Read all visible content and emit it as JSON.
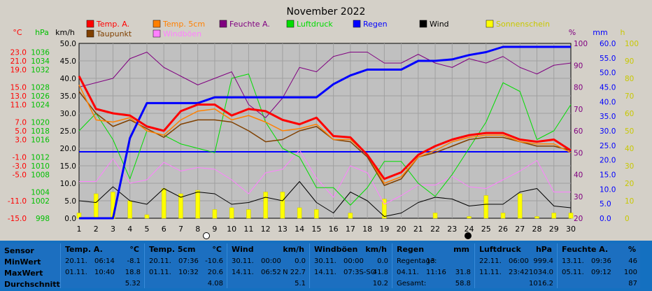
{
  "chart_data": {
    "type": "line",
    "title": "November 2022",
    "x": [
      1,
      2,
      3,
      4,
      5,
      6,
      7,
      8,
      9,
      10,
      11,
      12,
      13,
      14,
      15,
      16,
      17,
      18,
      19,
      20,
      21,
      22,
      23,
      24,
      25,
      26,
      27,
      28,
      29,
      30
    ],
    "axes": {
      "temp": {
        "unit": "°C",
        "ticks": [
          "23.0",
          "21.0",
          "19.0",
          "15.0",
          "13.0",
          "11.0",
          "7.0",
          "5.0",
          "3.0",
          "-1.0",
          "-3.0",
          "-5.0",
          "-11.0",
          "-15.0"
        ],
        "range": [
          -15,
          25
        ]
      },
      "pressure": {
        "unit": "hPa",
        "ticks": [
          "1036",
          "1034",
          "1032",
          "1028",
          "1026",
          "1024",
          "1020",
          "1018",
          "1016",
          "1012",
          "1010",
          "1008",
          "1004",
          "1002",
          "998"
        ],
        "range": [
          998,
          1038
        ]
      },
      "wind": {
        "unit": "km/h",
        "ticks": [
          "50.0",
          "45.0",
          "40.0",
          "35.0",
          "30.0",
          "25.0",
          "20.0",
          "15.0",
          "10.0",
          "5.0",
          "0.0"
        ],
        "range": [
          0,
          50
        ]
      },
      "humidity": {
        "unit": "%",
        "ticks": [
          "100",
          "90",
          "80",
          "70",
          "60",
          "50",
          "40",
          "30",
          "20"
        ],
        "range": [
          20,
          100
        ]
      },
      "rain": {
        "unit": "mm",
        "ticks": [
          "60.0",
          "55.0",
          "50.0",
          "45.0",
          "40.0",
          "35.0",
          "30.0",
          "25.0",
          "20.0",
          "15.0",
          "10.0",
          "5.0",
          "0.0"
        ],
        "range": [
          0,
          60
        ]
      },
      "sun": {
        "unit": "h",
        "ticks": [
          "100",
          "90",
          "80",
          "70",
          "60",
          "50",
          "40",
          "30",
          "20",
          "10",
          "0"
        ],
        "range": [
          0,
          100
        ]
      }
    },
    "legend": [
      {
        "name": "Temp. A.",
        "color": "#ff0000"
      },
      {
        "name": "Temp. 5cm",
        "color": "#ff8000"
      },
      {
        "name": "Feuchte A.",
        "color": "#800080"
      },
      {
        "name": "Luftdruck",
        "color": "#00dd00"
      },
      {
        "name": "Regen",
        "color": "#0000ff"
      },
      {
        "name": "Wind",
        "color": "#000000"
      },
      {
        "name": "Sonnenschein",
        "color": "#ffff00"
      },
      {
        "name": "Taupunkt",
        "color": "#804000"
      },
      {
        "name": "Windböen",
        "color": "#ff80ff"
      }
    ],
    "series": {
      "temp_a": [
        17.5,
        10.0,
        9.0,
        8.5,
        6.0,
        5.0,
        9.5,
        11.0,
        11.0,
        8.5,
        10.0,
        9.5,
        7.5,
        6.5,
        8.0,
        3.8,
        3.5,
        -0.5,
        -6.0,
        -4.5,
        -0.5,
        1.5,
        3.0,
        4.0,
        4.5,
        4.5,
        3.0,
        2.5,
        3.0,
        0.5
      ],
      "temp_5cm": [
        15.5,
        7.5,
        7.0,
        8.0,
        5.0,
        4.0,
        7.5,
        9.5,
        10.0,
        7.5,
        8.5,
        7.0,
        5.0,
        5.5,
        6.5,
        3.0,
        3.0,
        -0.5,
        -7.0,
        -5.5,
        -1.0,
        0.5,
        2.5,
        3.5,
        4.0,
        4.0,
        2.5,
        2.0,
        2.0,
        0.0
      ],
      "taupunkt": [
        14.0,
        9.0,
        6.0,
        7.5,
        5.5,
        3.5,
        6.5,
        7.5,
        7.5,
        7.0,
        5.0,
        2.5,
        3.0,
        5.0,
        6.0,
        3.0,
        2.5,
        -1.0,
        -7.5,
        -6.0,
        -1.0,
        0.0,
        1.5,
        3.0,
        3.5,
        3.5,
        2.5,
        1.5,
        1.5,
        0.5
      ],
      "feuchte": [
        80,
        82,
        84,
        93,
        96,
        89,
        85,
        81,
        84,
        87,
        72,
        66,
        75,
        89,
        87,
        94,
        96,
        96,
        91,
        91,
        95,
        91,
        89,
        93,
        91,
        94,
        89,
        86,
        90,
        91
      ],
      "luftdruck": [
        1018,
        1022,
        1016,
        1007,
        1018,
        1017,
        1015,
        1014,
        1013,
        1030,
        1031,
        1020,
        1014,
        1012,
        1005,
        1005,
        1001,
        1005,
        1011,
        1011,
        1006,
        1003,
        1008,
        1014,
        1020,
        1029,
        1027,
        1016,
        1018,
        1024
      ],
      "regen": [
        0,
        0,
        0,
        27.5,
        39.5,
        39.5,
        39.5,
        39.5,
        41.5,
        41.5,
        41.5,
        41.5,
        41.5,
        41.5,
        41.5,
        46.0,
        49.0,
        51.0,
        51.0,
        51.0,
        54.0,
        54.0,
        54.5,
        56.0,
        57.0,
        58.8,
        58.8,
        58.8,
        58.8,
        58.8
      ],
      "wind": [
        5.0,
        4.5,
        9.0,
        5.0,
        4.0,
        8.5,
        6.0,
        7.5,
        7.0,
        4.0,
        4.5,
        6.0,
        5.0,
        10.5,
        4.5,
        1.5,
        7.5,
        5.0,
        0.5,
        1.5,
        4.5,
        6.0,
        5.5,
        3.5,
        4.0,
        4.0,
        7.5,
        8.5,
        3.5,
        3.0
      ],
      "windboeen": [
        10.5,
        10.5,
        17.0,
        10.0,
        11.0,
        16.0,
        13.5,
        14.5,
        14.0,
        11.0,
        7.0,
        13.0,
        14.0,
        19.5,
        11.5,
        6.0,
        15.0,
        13.0,
        4.0,
        6.5,
        9.5,
        9.5,
        12.0,
        9.0,
        8.5,
        11.0,
        13.5,
        16.5,
        7.5,
        7.5
      ],
      "sonnenschein": [
        3,
        14,
        15,
        10,
        2,
        17,
        14,
        16,
        5,
        6,
        5,
        15,
        15,
        6,
        5,
        0,
        3,
        0,
        11,
        0,
        0,
        3,
        0,
        1,
        13,
        3,
        14,
        1,
        3,
        3
      ]
    },
    "regen_line": 19
  },
  "stats": {
    "labels": [
      "Sensor",
      "MinWert",
      "MaxWert",
      "Durchschnitt"
    ],
    "columns": [
      {
        "title": "Temp. A.",
        "unit": "°C",
        "min_date": "20.11.",
        "min_time": "06:14",
        "min_val": "-8.1",
        "max_date": "01.11.",
        "max_time": "10:40",
        "max_val": "18.8",
        "avg": "5.32"
      },
      {
        "title": "Temp. 5cm",
        "unit": "°C",
        "min_date": "20.11.",
        "min_time": "07:36",
        "min_val": "-10.6",
        "max_date": "01.11.",
        "max_time": "10:32",
        "max_val": "20.6",
        "avg": "4.08"
      },
      {
        "title": "Wind",
        "unit": "km/h",
        "min_date": "30.11.",
        "min_time": "00:00",
        "min_val": "0.0",
        "max_date": "14.11.",
        "max_time": "06:52",
        "max_val": "N 22.7",
        "avg": "5.1"
      },
      {
        "title": "Windböen",
        "unit": "km/h",
        "min_date": "30.11.",
        "min_time": "00:00",
        "min_val": "0.0",
        "max_date": "14.11.",
        "max_time": "07:3S-SO",
        "max_val": "41.8",
        "avg": "10.2"
      },
      {
        "title": "Regen",
        "unit": "mm",
        "min_date": "Regentage:",
        "min_time": "13",
        "min_val": "",
        "max_date": "04.11.",
        "max_time": "11:16",
        "max_val": "31.8",
        "avg_label": "Gesamt:",
        "avg": "58.8"
      },
      {
        "title": "Luftdruck",
        "unit": "hPa",
        "min_date": "22.11.",
        "min_time": "06:00",
        "min_val": "999.4",
        "max_date": "11.11.",
        "max_time": "23:42",
        "max_val": "1034.0",
        "avg": "1016.2"
      },
      {
        "title": "Feuchte A.",
        "unit": "%",
        "min_date": "13.11.",
        "min_time": "09:36",
        "min_val": "46",
        "max_date": "05.11.",
        "max_time": "09:12",
        "max_val": "100",
        "avg": "87"
      }
    ]
  }
}
